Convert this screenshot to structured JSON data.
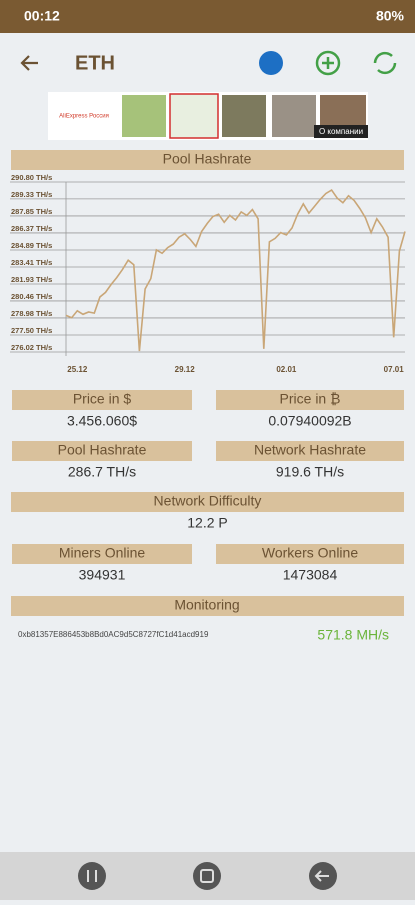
{
  "status_bar": {
    "time": "00:12",
    "battery": "80%"
  },
  "app_bar": {
    "title": "ETH"
  },
  "ad": {
    "brand": "AliExpress Россия",
    "link": "О компании"
  },
  "chart_data": {
    "type": "line",
    "title": "Pool Hashrate",
    "categories": [
      null,
      null,
      "25.12",
      null,
      null,
      null,
      null,
      null,
      null,
      null,
      null,
      null,
      null,
      null,
      null,
      null,
      null,
      null,
      null,
      null,
      null,
      "29.12",
      null,
      null,
      null,
      null,
      null,
      null,
      null,
      null,
      null,
      null,
      null,
      null,
      null,
      null,
      null,
      null,
      null,
      "02.01",
      null,
      null,
      null,
      null,
      null,
      null,
      null,
      null,
      null,
      null,
      null,
      null,
      null,
      null,
      null,
      null,
      null,
      null,
      "07.01",
      null,
      null
    ],
    "values": [
      279.2,
      279.0,
      279.6,
      279.3,
      279.5,
      279.4,
      280.8,
      281.2,
      281.9,
      282.5,
      283.2,
      284.0,
      283.6,
      276.1,
      281.5,
      282.4,
      284.9,
      284.6,
      285.1,
      285.4,
      286.0,
      286.3,
      285.8,
      285.2,
      286.5,
      287.2,
      287.8,
      288.0,
      287.3,
      287.9,
      287.5,
      288.2,
      287.9,
      288.4,
      287.6,
      276.3,
      285.6,
      285.9,
      286.4,
      286.2,
      286.8,
      288.0,
      288.9,
      288.1,
      288.7,
      289.3,
      289.8,
      290.1,
      289.4,
      289.0,
      289.6,
      289.2,
      288.5,
      287.7,
      286.4,
      287.6,
      286.9,
      286.0,
      277.3,
      284.8,
      286.5
    ],
    "color": "#c9a677",
    "ylim": [
      276.02,
      290.8
    ],
    "yticks": [
      {
        "value": 290.8,
        "label": "290.80 TH/s"
      },
      {
        "value": 289.33,
        "label": "289.33 TH/s"
      },
      {
        "value": 287.85,
        "label": "287.85 TH/s"
      },
      {
        "value": 286.37,
        "label": "286.37 TH/s"
      },
      {
        "value": 284.89,
        "label": "284.89 TH/s"
      },
      {
        "value": 283.41,
        "label": "283.41 TH/s"
      },
      {
        "value": 281.93,
        "label": "281.93 TH/s"
      },
      {
        "value": 280.46,
        "label": "280.46 TH/s"
      },
      {
        "value": 278.98,
        "label": "278.98 TH/s"
      },
      {
        "value": 277.5,
        "label": "277.50 TH/s"
      },
      {
        "value": 276.02,
        "label": "276.02 TH/s"
      }
    ],
    "grid": true
  },
  "cards": [
    {
      "label": "Price in $",
      "value": "3.456.060$"
    },
    {
      "label": "Price in ₿",
      "value": "0.07940092B"
    },
    {
      "label": "Pool Hashrate",
      "value": "286.7 TH/s"
    },
    {
      "label": "Network Hashrate",
      "value": "919.6 TH/s"
    },
    {
      "label": "Network Difficulty",
      "value": "12.2 P"
    },
    {
      "label": "Miners Online",
      "value": "394931"
    },
    {
      "label": "Workers Online",
      "value": "1473084"
    }
  ],
  "monitoring": {
    "title": "Monitoring",
    "address": "0xb81357E886453b8Bd0AC9d5C8727fC1d41acd919",
    "hashrate": "571.8 MH/s"
  }
}
